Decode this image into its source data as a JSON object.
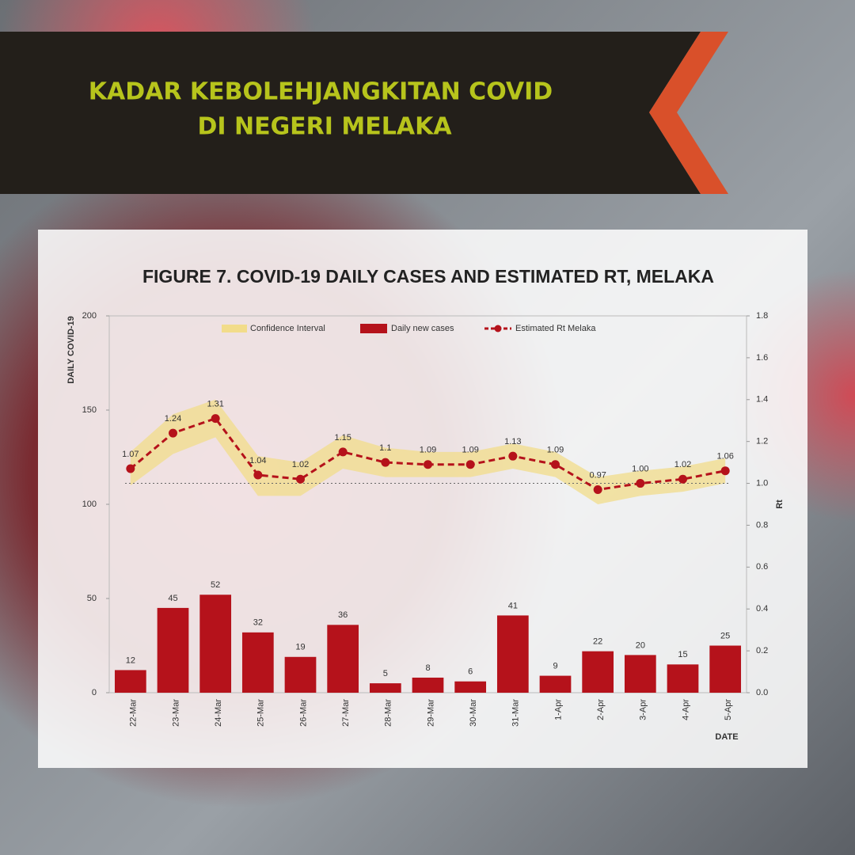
{
  "header": {
    "title_lines": [
      "KADAR KEBOLEHJANGKITAN COVID",
      "DI NEGERI MELAKA"
    ]
  },
  "chart_data": {
    "type": "bar-line",
    "title": "FIGURE 7. COVID-19 DAILY CASES AND ESTIMATED RT, MELAKA",
    "y_label": "DAILY COVID-19",
    "y2_label": "Rt",
    "x_label": "DATE",
    "categories": [
      "22-Mar",
      "23-Mar",
      "24-Mar",
      "25-Mar",
      "26-Mar",
      "27-Mar",
      "28-Mar",
      "29-Mar",
      "30-Mar",
      "31-Mar",
      "1-Apr",
      "2-Apr",
      "3-Apr",
      "4-Apr",
      "5-Apr"
    ],
    "ylim": [
      0,
      200
    ],
    "yticks": [
      0,
      50,
      100,
      150,
      200
    ],
    "y2lim": [
      0,
      1.8
    ],
    "y2ticks": [
      {
        "value": 0,
        "label": "0.0"
      },
      0.2,
      0.4,
      0.6,
      0.8,
      {
        "value": 1,
        "label": "1.0"
      },
      1.2,
      1.4,
      1.6,
      1.8
    ],
    "y2_reference": 1,
    "band": {
      "name": "Confidence Interval",
      "color": "#f2dc8a",
      "lower": [
        0.99,
        1.14,
        1.22,
        0.94,
        0.94,
        1.07,
        1.03,
        1.03,
        1.03,
        1.07,
        1.03,
        0.9,
        0.94,
        0.96,
        1.0
      ],
      "upper": [
        1.15,
        1.33,
        1.4,
        1.13,
        1.1,
        1.23,
        1.17,
        1.15,
        1.15,
        1.19,
        1.15,
        1.03,
        1.06,
        1.08,
        1.12
      ]
    },
    "series": [
      {
        "name": "Daily new cases",
        "type": "bar",
        "color": "#b5121b",
        "values": [
          12,
          45,
          52,
          32,
          19,
          36,
          5,
          8,
          6,
          41,
          9,
          22,
          20,
          15,
          25
        ]
      },
      {
        "name": "Estimated Rt Melaka",
        "type": "line",
        "axis": "y2",
        "color": "#b5121b",
        "values": [
          1.07,
          1.24,
          1.31,
          1.04,
          1.02,
          1.15,
          1.1,
          1.09,
          1.09,
          1.13,
          1.09,
          0.97,
          1,
          1.02,
          1.06
        ],
        "value_labels": [
          "1.07",
          "1.24",
          "1.31",
          "1.04",
          "1.02",
          "1.15",
          "1.1",
          "1.09",
          "1.09",
          "1.13",
          "1.09",
          "0.97",
          "1.00",
          "1.02",
          "1.06"
        ]
      }
    ]
  }
}
